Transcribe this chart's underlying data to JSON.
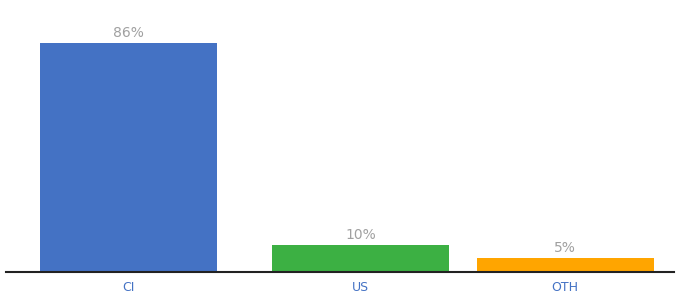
{
  "categories": [
    "CI",
    "US",
    "OTH"
  ],
  "values": [
    86,
    10,
    5
  ],
  "labels": [
    "86%",
    "10%",
    "5%"
  ],
  "bar_colors": [
    "#4472C4",
    "#3CB043",
    "#FFA500"
  ],
  "background_color": "#ffffff",
  "label_color": "#a0a0a0",
  "tick_color": "#4472C4",
  "ylim": [
    0,
    100
  ],
  "bar_width": 0.65,
  "label_fontsize": 10,
  "tick_fontsize": 9,
  "xlim": [
    -0.5,
    2.5
  ]
}
